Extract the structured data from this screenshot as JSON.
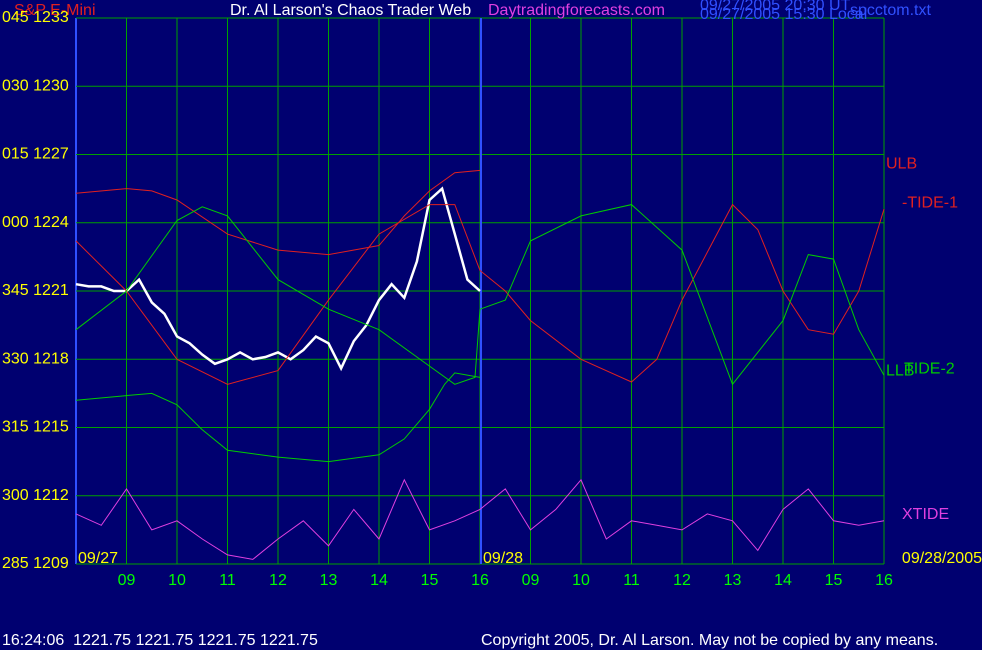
{
  "chart_data": {
    "type": "line",
    "title": "Dr. Al Larson's Chaos Trader Web",
    "subtitle": "Daytradingforecasts.com",
    "instrument": "S&P E-Mini",
    "timestamps": [
      "09/27/2005 20:30 UT",
      "09/27/2005 15:30 Local"
    ],
    "file": "spcctom.txt",
    "date_labels": [
      "09/27",
      "09/28",
      "09/28/2005"
    ],
    "status": "16:24:06  1221.75 1221.75 1221.75 1221.75",
    "copyright": "Copyright 2005, Dr. Al Larson. May not be copied by any means.",
    "xlim": [
      0,
      16
    ],
    "xticks": [
      {
        "value": 1,
        "label": "09"
      },
      {
        "value": 2,
        "label": "10"
      },
      {
        "value": 3,
        "label": "11"
      },
      {
        "value": 4,
        "label": "12"
      },
      {
        "value": 5,
        "label": "13"
      },
      {
        "value": 6,
        "label": "14"
      },
      {
        "value": 7,
        "label": "15"
      },
      {
        "value": 8,
        "label": "16"
      },
      {
        "value": 9,
        "label": "09"
      },
      {
        "value": 10,
        "label": "10"
      },
      {
        "value": 11,
        "label": "11"
      },
      {
        "value": 12,
        "label": "12"
      },
      {
        "value": 13,
        "label": "13"
      },
      {
        "value": 14,
        "label": "14"
      },
      {
        "value": 15,
        "label": "15"
      },
      {
        "value": 16,
        "label": "16"
      }
    ],
    "ylim": [
      1209,
      1233
    ],
    "yticks": [
      {
        "value": 1233,
        "label": "045 1233"
      },
      {
        "value": 1230,
        "label": "030 1230"
      },
      {
        "value": 1227,
        "label": "015 1227"
      },
      {
        "value": 1224,
        "label": "000 1224"
      },
      {
        "value": 1221,
        "label": "345 1221"
      },
      {
        "value": 1218,
        "label": "330 1218"
      },
      {
        "value": 1215,
        "label": "315 1215"
      },
      {
        "value": 1212,
        "label": "300 1212"
      },
      {
        "value": 1209,
        "label": "285 1209"
      }
    ],
    "grid": true,
    "series": [
      {
        "name": "S&P E-Mini",
        "color": "#ffffff",
        "x": [
          0,
          0.25,
          0.5,
          0.75,
          1,
          1.25,
          1.5,
          1.75,
          2,
          2.25,
          2.5,
          2.75,
          3,
          3.25,
          3.5,
          3.75,
          4,
          4.25,
          4.5,
          4.75,
          5,
          5.25,
          5.5,
          5.75,
          6,
          6.25,
          6.5,
          6.75,
          7,
          7.25,
          7.5,
          7.75,
          8
        ],
        "values": [
          1221.3,
          1221.2,
          1221.2,
          1221.0,
          1221.0,
          1221.5,
          1220.5,
          1220.0,
          1219.0,
          1218.7,
          1218.2,
          1217.8,
          1218.0,
          1218.3,
          1218.0,
          1218.1,
          1218.3,
          1218.0,
          1218.4,
          1219.0,
          1218.7,
          1217.6,
          1218.8,
          1219.5,
          1220.6,
          1221.3,
          1220.7,
          1222.3,
          1225.0,
          1225.5,
          1223.5,
          1221.5,
          1221.0
        ]
      },
      {
        "name": "ULB",
        "color": "#e02020",
        "x": [
          0,
          1,
          1.5,
          2,
          3,
          4,
          5,
          6,
          6.5,
          7,
          7.5,
          8
        ],
        "values": [
          1225.3,
          1225.5,
          1225.4,
          1225.0,
          1223.5,
          1222.8,
          1222.6,
          1223.0,
          1224.3,
          1225.4,
          1226.2,
          1226.3
        ]
      },
      {
        "name": "-TIDE-1",
        "color": "#e02020",
        "x": [
          0,
          1,
          2,
          3,
          4,
          5,
          6,
          7,
          7.5,
          8,
          8.5,
          9,
          10,
          11,
          11.5,
          12,
          13,
          13.5,
          14,
          14.5,
          15,
          15.5,
          16
        ],
        "values": [
          1223.2,
          1221.0,
          1218.0,
          1216.9,
          1217.5,
          1220.6,
          1223.5,
          1224.8,
          1224.8,
          1221.9,
          1221.0,
          1219.7,
          1218.0,
          1217.0,
          1218.0,
          1220.6,
          1224.8,
          1223.7,
          1221.0,
          1219.3,
          1219.1,
          1221.0,
          1224.6
        ]
      },
      {
        "name": "LLB",
        "color": "#00cc00",
        "x": [
          0,
          1,
          1.5,
          2,
          2.5,
          3,
          4,
          5,
          6,
          6.5,
          7,
          7.3,
          7.5,
          8
        ],
        "values": [
          1216.2,
          1216.4,
          1216.5,
          1216.0,
          1214.9,
          1214.0,
          1213.7,
          1213.5,
          1213.8,
          1214.5,
          1215.8,
          1216.9,
          1217.4,
          1217.2
        ]
      },
      {
        "name": "TIDE-2",
        "color": "#00cc00",
        "x": [
          0,
          1,
          2,
          2.5,
          3,
          4,
          5,
          6,
          7,
          7.5,
          7.9,
          8,
          8.5,
          9,
          10,
          11,
          12,
          13,
          14,
          14.5,
          15,
          15.5,
          16
        ],
        "values": [
          1219.3,
          1221.0,
          1224.1,
          1224.7,
          1224.3,
          1221.5,
          1220.2,
          1219.3,
          1217.7,
          1216.9,
          1217.2,
          1220.2,
          1220.6,
          1223.2,
          1224.3,
          1224.8,
          1222.8,
          1216.9,
          1219.7,
          1222.6,
          1222.4,
          1219.3,
          1217.3
        ]
      },
      {
        "name": "XTIDE",
        "color": "#e040e0",
        "x": [
          0,
          0.5,
          1,
          1.5,
          2,
          2.5,
          3,
          3.5,
          4,
          4.5,
          5,
          5.5,
          6,
          6.5,
          7,
          7.5,
          8,
          8.5,
          9,
          9.5,
          10,
          10.5,
          11,
          11.5,
          12,
          12.5,
          13,
          13.5,
          14,
          14.5,
          15,
          15.5,
          16
        ],
        "values": [
          1211.2,
          1210.7,
          1212.3,
          1210.5,
          1210.9,
          1210.1,
          1209.4,
          1209.2,
          1210.1,
          1210.9,
          1209.8,
          1211.4,
          1210.1,
          1212.7,
          1210.5,
          1210.9,
          1211.4,
          1212.3,
          1210.5,
          1211.4,
          1212.7,
          1210.1,
          1210.9,
          1210.7,
          1210.5,
          1211.2,
          1210.9,
          1209.6,
          1211.4,
          1212.3,
          1210.9,
          1210.7,
          1210.9
        ]
      }
    ]
  }
}
